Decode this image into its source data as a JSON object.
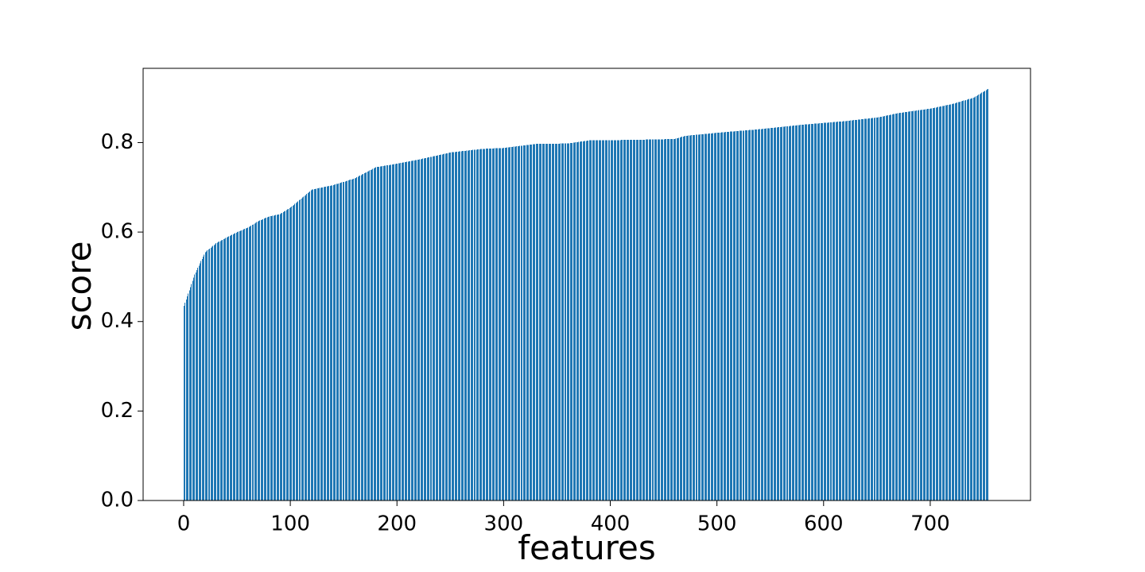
{
  "chart_data": {
    "type": "bar",
    "title": "",
    "xlabel": "features",
    "ylabel": "score",
    "xlim": [
      -38,
      794
    ],
    "ylim": [
      0,
      0.966
    ],
    "xticks": [
      0,
      100,
      200,
      300,
      400,
      500,
      600,
      700
    ],
    "xtick_labels": [
      "0",
      "100",
      "200",
      "300",
      "400",
      "500",
      "600",
      "700"
    ],
    "yticks": [
      0.0,
      0.2,
      0.4,
      0.6,
      0.8
    ],
    "ytick_labels": [
      "0.0",
      "0.2",
      "0.4",
      "0.6",
      "0.8"
    ],
    "grid": false,
    "legend": false,
    "bar_color": "#1f77b4",
    "bar_count": 755,
    "score_profile": [
      {
        "feature": 0,
        "score": 0.435
      },
      {
        "feature": 5,
        "score": 0.47
      },
      {
        "feature": 10,
        "score": 0.505
      },
      {
        "feature": 20,
        "score": 0.555
      },
      {
        "feature": 30,
        "score": 0.575
      },
      {
        "feature": 40,
        "score": 0.588
      },
      {
        "feature": 50,
        "score": 0.6
      },
      {
        "feature": 60,
        "score": 0.61
      },
      {
        "feature": 70,
        "score": 0.625
      },
      {
        "feature": 80,
        "score": 0.635
      },
      {
        "feature": 90,
        "score": 0.64
      },
      {
        "feature": 100,
        "score": 0.655
      },
      {
        "feature": 110,
        "score": 0.675
      },
      {
        "feature": 120,
        "score": 0.695
      },
      {
        "feature": 140,
        "score": 0.705
      },
      {
        "feature": 160,
        "score": 0.72
      },
      {
        "feature": 180,
        "score": 0.745
      },
      {
        "feature": 200,
        "score": 0.753
      },
      {
        "feature": 220,
        "score": 0.762
      },
      {
        "feature": 250,
        "score": 0.778
      },
      {
        "feature": 280,
        "score": 0.786
      },
      {
        "feature": 300,
        "score": 0.788
      },
      {
        "feature": 330,
        "score": 0.797
      },
      {
        "feature": 360,
        "score": 0.798
      },
      {
        "feature": 380,
        "score": 0.805
      },
      {
        "feature": 420,
        "score": 0.806
      },
      {
        "feature": 460,
        "score": 0.808
      },
      {
        "feature": 470,
        "score": 0.815
      },
      {
        "feature": 500,
        "score": 0.822
      },
      {
        "feature": 540,
        "score": 0.83
      },
      {
        "feature": 580,
        "score": 0.84
      },
      {
        "feature": 620,
        "score": 0.848
      },
      {
        "feature": 650,
        "score": 0.856
      },
      {
        "feature": 670,
        "score": 0.866
      },
      {
        "feature": 700,
        "score": 0.876
      },
      {
        "feature": 720,
        "score": 0.886
      },
      {
        "feature": 740,
        "score": 0.9
      },
      {
        "feature": 754,
        "score": 0.92
      }
    ]
  }
}
